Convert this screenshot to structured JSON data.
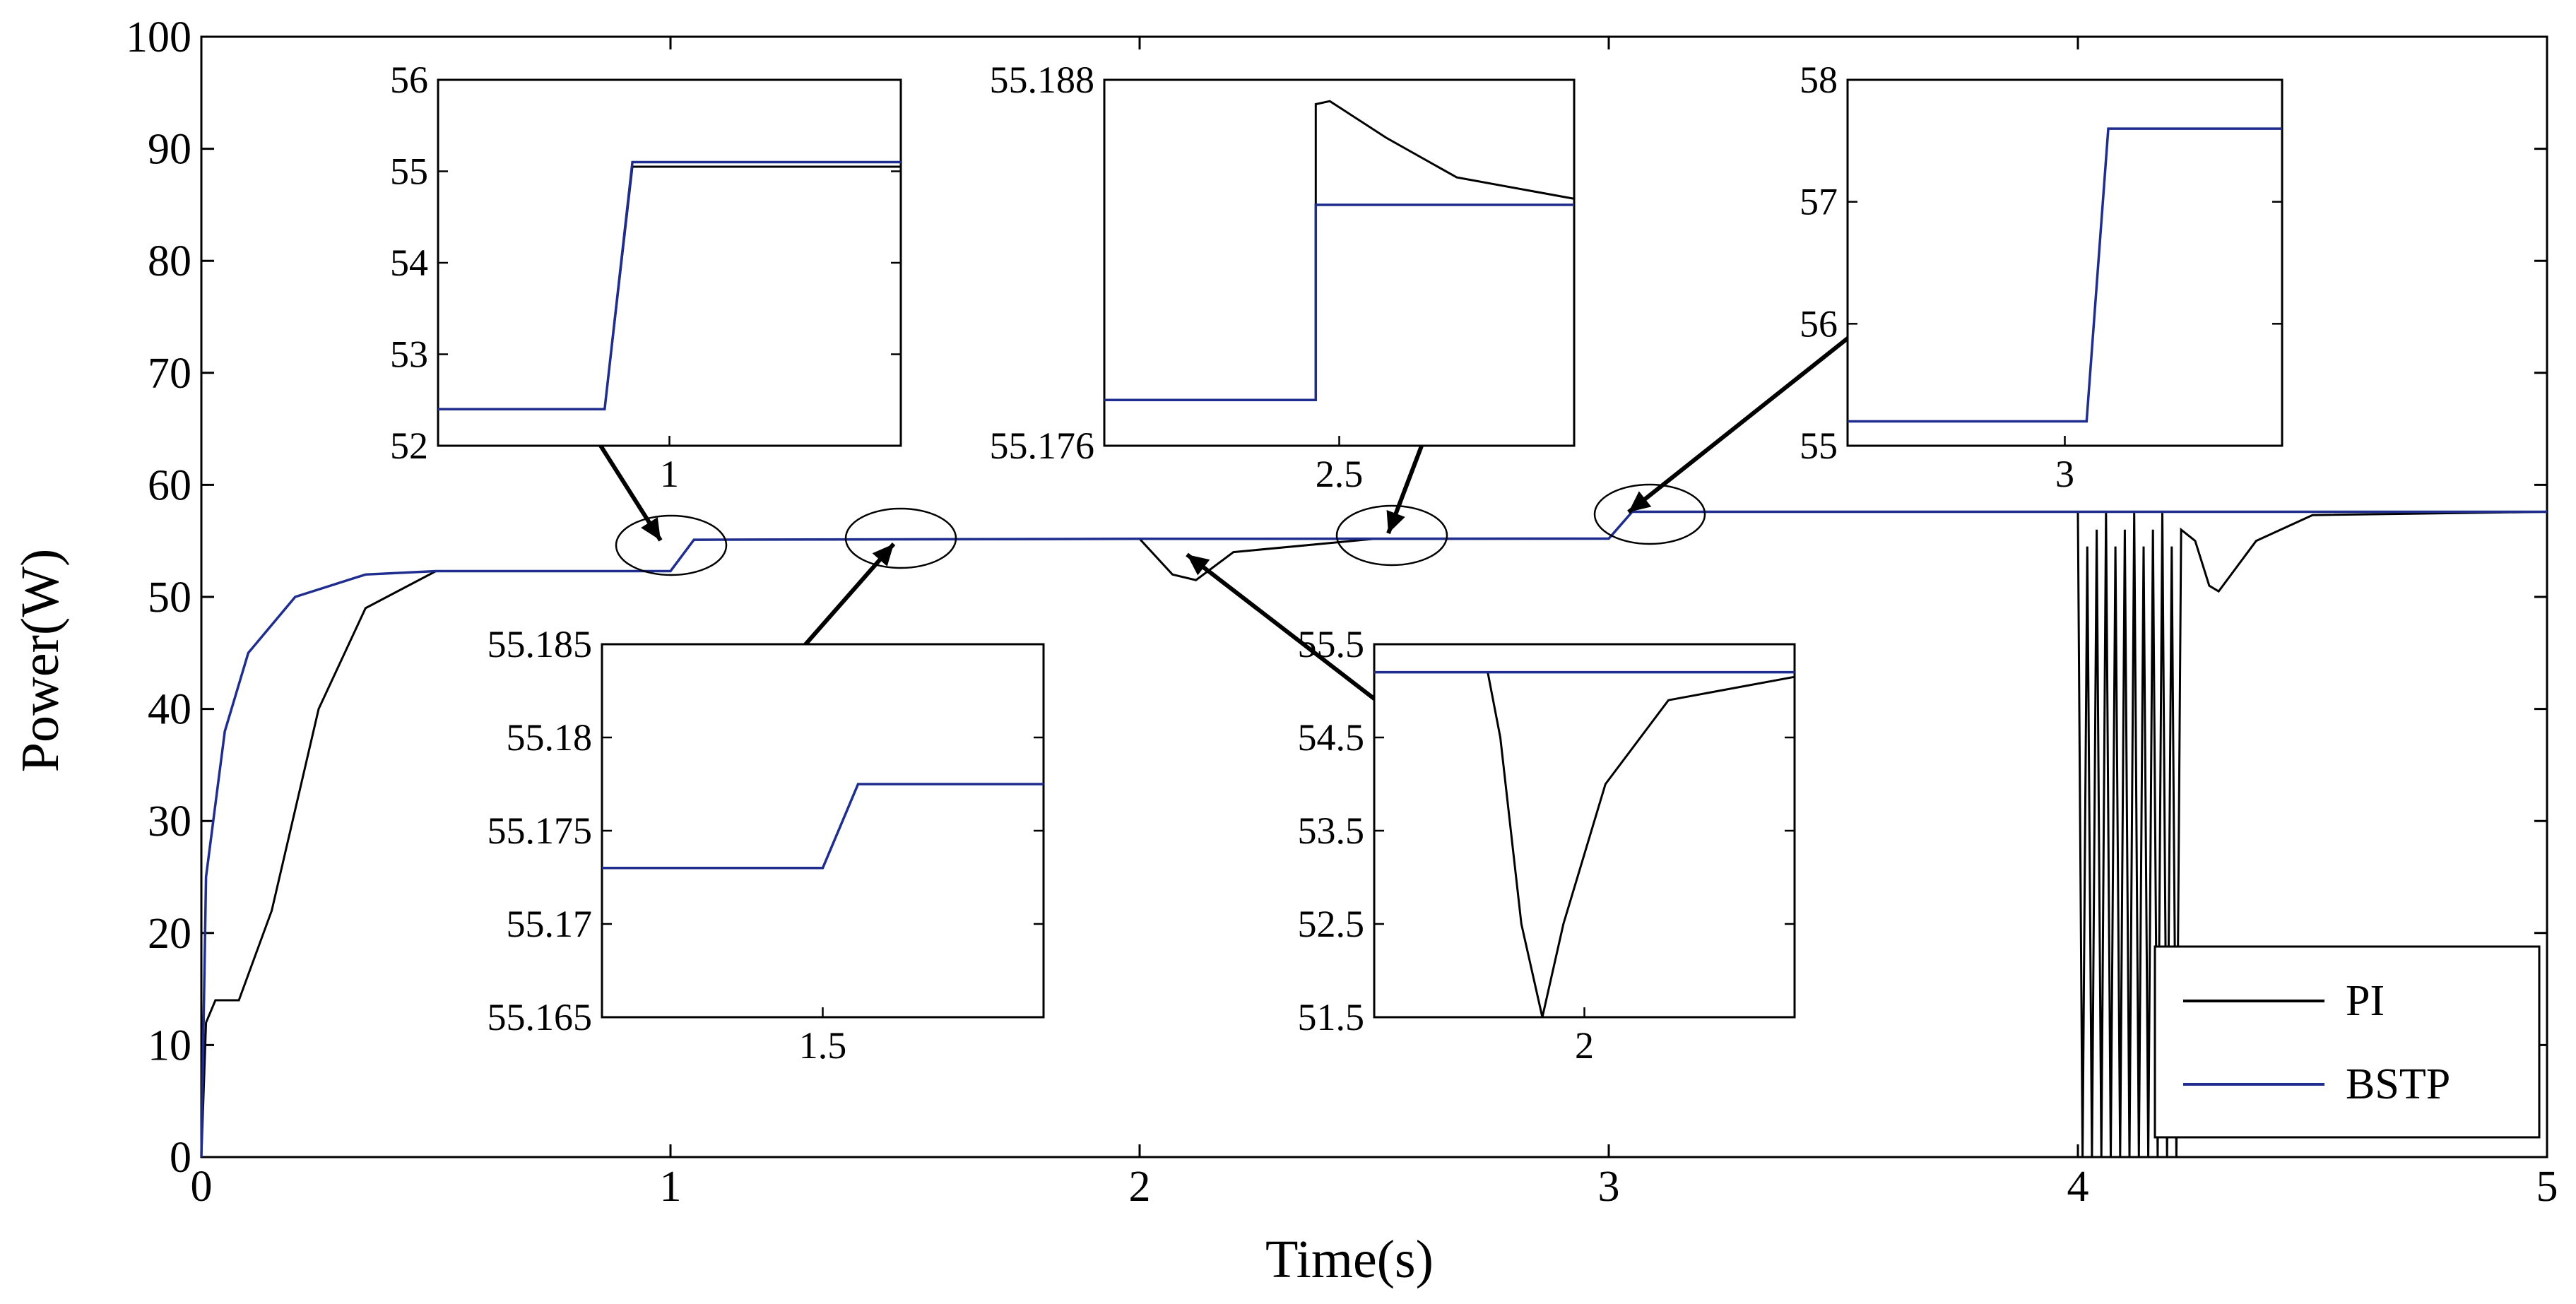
{
  "chart_data": {
    "type": "line",
    "xlabel": "Time(s)",
    "ylabel": "Power(W)",
    "xlim": [
      0,
      5
    ],
    "ylim": [
      0,
      100
    ],
    "xticks": [
      "0",
      "1",
      "2",
      "3",
      "4",
      "5"
    ],
    "yticks": [
      "0",
      "10",
      "20",
      "30",
      "40",
      "50",
      "60",
      "70",
      "80",
      "90",
      "100"
    ],
    "legend": {
      "position": "bottom-right",
      "entries": [
        "PI",
        "BSTP"
      ]
    },
    "series": [
      {
        "name": "PI",
        "color": "#000000",
        "description_points": [
          [
            0,
            0
          ],
          [
            0.01,
            12
          ],
          [
            0.03,
            14
          ],
          [
            0.08,
            14
          ],
          [
            0.15,
            22
          ],
          [
            0.25,
            40
          ],
          [
            0.35,
            49
          ],
          [
            0.5,
            52.3
          ],
          [
            1.0,
            52.3
          ],
          [
            1.05,
            55.1
          ],
          [
            2.0,
            55.18
          ],
          [
            2.07,
            52
          ],
          [
            2.12,
            51.5
          ],
          [
            2.2,
            54
          ],
          [
            2.5,
            55.18
          ],
          [
            3.0,
            55.2
          ],
          [
            3.05,
            57.6
          ],
          [
            4.0,
            57.6
          ],
          [
            4.25,
            57.6
          ],
          [
            4.3,
            50.5
          ],
          [
            4.5,
            57.6
          ],
          [
            5.0,
            57.6
          ]
        ]
      },
      {
        "name": "BSTP",
        "color": "#1f2d8f",
        "description_points": [
          [
            0,
            0
          ],
          [
            0.01,
            25
          ],
          [
            0.05,
            38
          ],
          [
            0.1,
            45
          ],
          [
            0.2,
            50
          ],
          [
            0.35,
            52
          ],
          [
            0.5,
            52.3
          ],
          [
            1.0,
            52.3
          ],
          [
            1.05,
            55.1
          ],
          [
            2.0,
            55.18
          ],
          [
            3.0,
            55.2
          ],
          [
            3.05,
            57.6
          ],
          [
            5.0,
            57.6
          ]
        ]
      }
    ],
    "insets": [
      {
        "name": "inset-1",
        "xtick": "1",
        "yticks": [
          "52",
          "53",
          "54",
          "55",
          "56"
        ],
        "ylim": [
          52,
          56
        ],
        "black": [
          [
            0,
            52.4
          ],
          [
            0.36,
            52.4
          ],
          [
            0.42,
            55.05
          ],
          [
            1,
            55.05
          ]
        ],
        "blue": [
          [
            0,
            52.4
          ],
          [
            0.36,
            52.4
          ],
          [
            0.42,
            55.1
          ],
          [
            1,
            55.1
          ]
        ]
      },
      {
        "name": "inset-2",
        "xtick": "2.5",
        "yticks": [
          "55.188",
          "55.176"
        ],
        "ylim": [
          55.176,
          55.188
        ],
        "blue": [
          [
            0,
            55.1775
          ],
          [
            0.45,
            55.1775
          ],
          [
            0.45,
            55.1839
          ],
          [
            1,
            55.1839
          ]
        ],
        "black": [
          [
            0.45,
            55.1775
          ],
          [
            0.45,
            55.1872
          ],
          [
            0.48,
            55.1873
          ],
          [
            0.6,
            55.1861
          ],
          [
            0.75,
            55.1848
          ],
          [
            1,
            55.1841
          ]
        ]
      },
      {
        "name": "inset-3",
        "xtick": "3",
        "yticks": [
          "55",
          "56",
          "57",
          "58"
        ],
        "ylim": [
          55,
          58
        ],
        "blue": [
          [
            0,
            55.2
          ],
          [
            0.55,
            55.2
          ],
          [
            0.6,
            57.6
          ],
          [
            1,
            57.6
          ]
        ]
      },
      {
        "name": "inset-4",
        "xtick": "1.5",
        "yticks": [
          "55.185",
          "55.18",
          "55.175",
          "55.17",
          "55.165"
        ],
        "ylim": [
          55.165,
          55.185
        ],
        "black": [
          [
            0,
            55.173
          ],
          [
            0.5,
            55.173
          ],
          [
            0.58,
            55.1775
          ],
          [
            1,
            55.1775
          ]
        ],
        "blue": [
          [
            0,
            55.173
          ],
          [
            0.5,
            55.173
          ],
          [
            0.58,
            55.1775
          ],
          [
            1,
            55.1775
          ]
        ]
      },
      {
        "name": "inset-5",
        "xtick": "2",
        "yticks": [
          "55.5",
          "54.5",
          "53.5",
          "52.5",
          "51.5"
        ],
        "ylim": [
          51.5,
          55.5
        ],
        "blue": [
          [
            0,
            55.2
          ],
          [
            1,
            55.2
          ]
        ],
        "black": [
          [
            0,
            55.2
          ],
          [
            0.27,
            55.2
          ],
          [
            0.3,
            54.5
          ],
          [
            0.35,
            52.5
          ],
          [
            0.4,
            51.5
          ],
          [
            0.45,
            52.5
          ],
          [
            0.55,
            54
          ],
          [
            0.7,
            54.9
          ],
          [
            1,
            55.15
          ]
        ]
      }
    ]
  }
}
